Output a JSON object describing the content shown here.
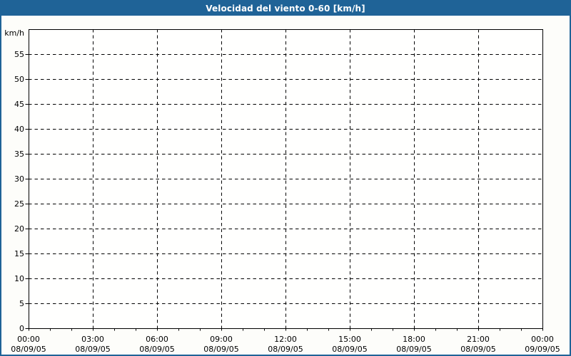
{
  "title": "Velocidad del viento 0-60 [km/h]",
  "colors": {
    "titlebar_bg": "#1f6397",
    "titlebar_text": "#ffffff",
    "frame_border": "#1f6397",
    "page_bg": "#fdfdfa",
    "plot_bg": "#fffffe",
    "grid_color": "#000000",
    "axis_color": "#000000",
    "label_color": "#000000"
  },
  "chart_data": {
    "type": "line",
    "title": "Velocidad del viento 0-60 [km/h]",
    "ylabel": "km/h",
    "xlabel": "",
    "ylim": [
      0,
      60
    ],
    "yticks": [
      0,
      5,
      10,
      15,
      20,
      25,
      30,
      35,
      40,
      45,
      50,
      55
    ],
    "x_hours_total": 24,
    "x_minor_step_hours": 1,
    "x_major_step_hours": 3,
    "x_major_labels": [
      {
        "time": "00:00",
        "date": "08/09/05"
      },
      {
        "time": "03:00",
        "date": "08/09/05"
      },
      {
        "time": "06:00",
        "date": "08/09/05"
      },
      {
        "time": "09:00",
        "date": "08/09/05"
      },
      {
        "time": "12:00",
        "date": "08/09/05"
      },
      {
        "time": "15:00",
        "date": "08/09/05"
      },
      {
        "time": "18:00",
        "date": "08/09/05"
      },
      {
        "time": "21:00",
        "date": "08/09/05"
      },
      {
        "time": "00:00",
        "date": "09/09/05"
      }
    ],
    "grid": "dashed",
    "legend": "none",
    "series": []
  }
}
